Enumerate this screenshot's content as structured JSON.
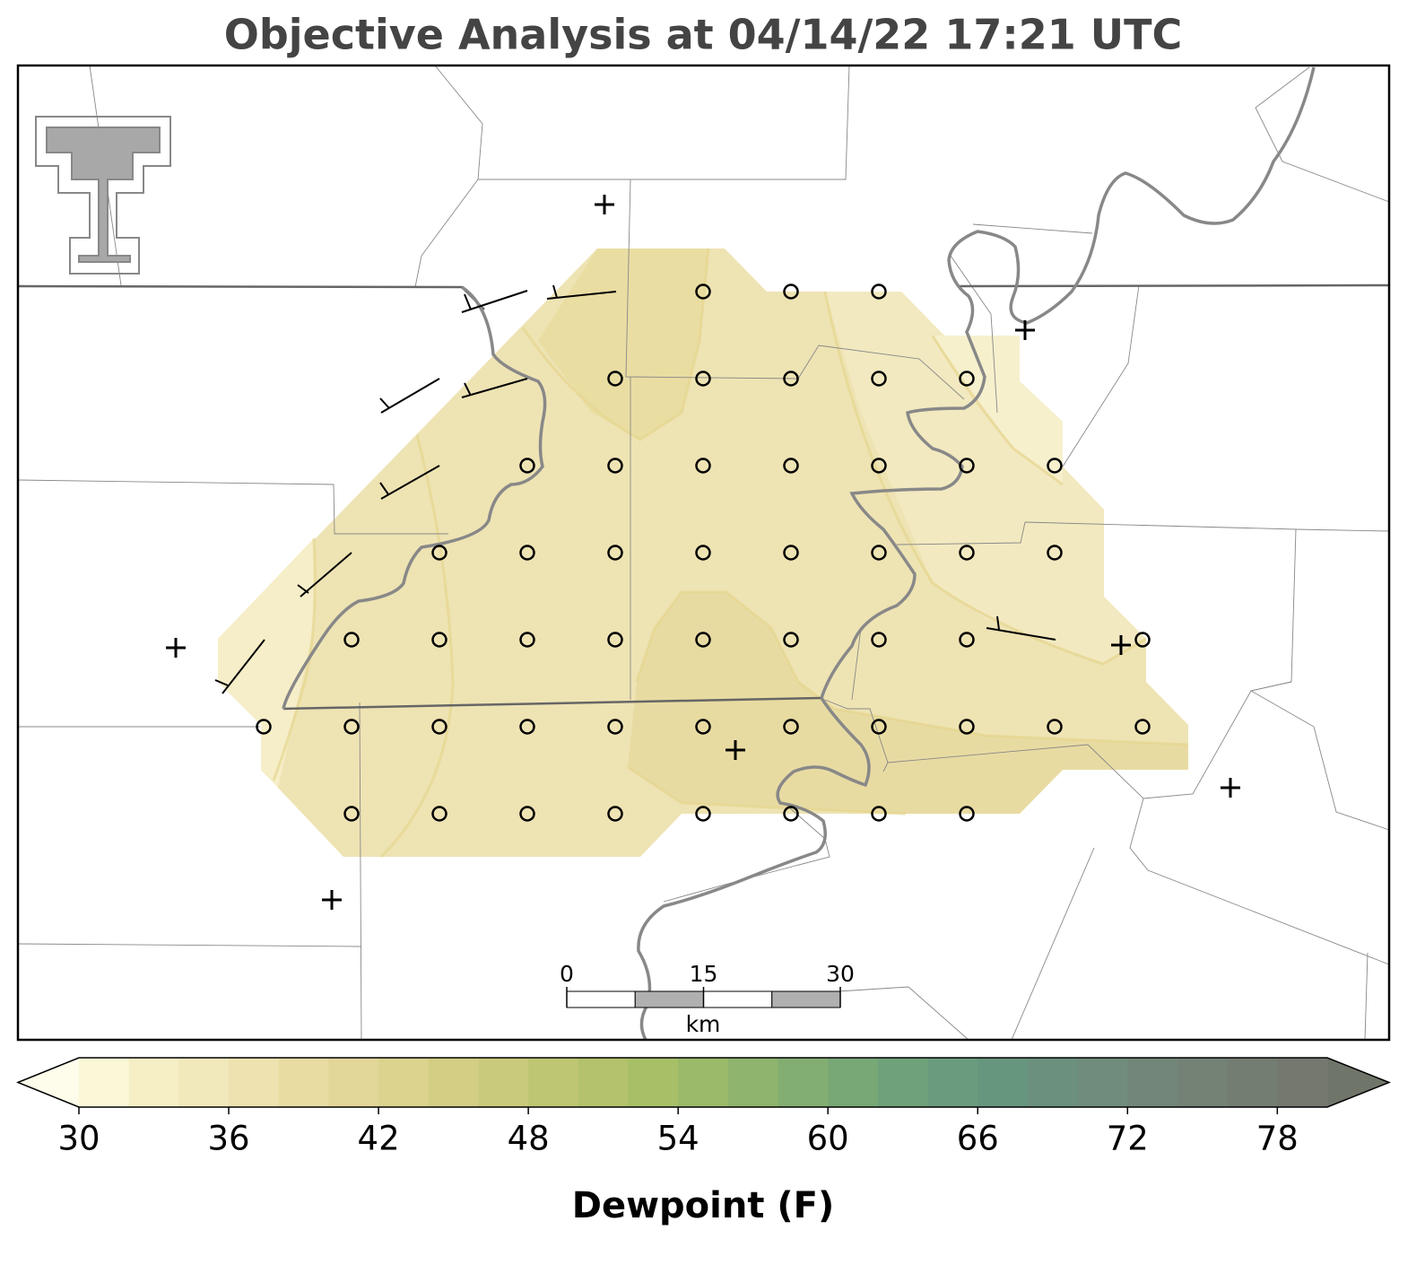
{
  "title": "Objective Analysis at 04/14/22 17:21 UTC",
  "colorbar": {
    "label": "Dewpoint (F)",
    "lim": [
      30,
      80
    ],
    "ticks": [
      30,
      36,
      42,
      48,
      54,
      60,
      66,
      72,
      78
    ],
    "colors": [
      "#fbf8d8",
      "#f6efc6",
      "#f1e8bb",
      "#ede2b0",
      "#e8dca3",
      "#e3d699",
      "#dbd38e",
      "#d3ce84",
      "#c9ca7b",
      "#bec672",
      "#b3c26b",
      "#a7c068",
      "#9bba6a",
      "#8fb46d",
      "#83ae71",
      "#78a876",
      "#6fa27a",
      "#699c7e",
      "#67967f",
      "#6b917e",
      "#6f8c7c",
      "#728779",
      "#748276",
      "#747d72",
      "#74786f"
    ],
    "under_color": "#fefcea",
    "over_color": "#707569"
  },
  "scale_bar": {
    "ticks": [
      0,
      15,
      30
    ],
    "unit": "km"
  }
}
